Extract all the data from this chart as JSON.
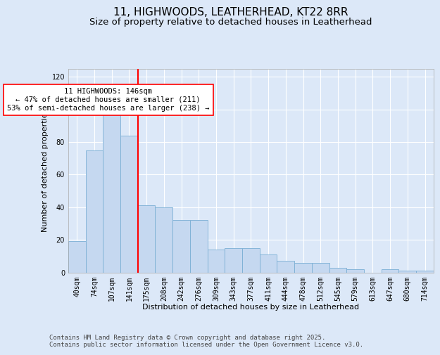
{
  "title_line1": "11, HIGHWOODS, LEATHERHEAD, KT22 8RR",
  "title_line2": "Size of property relative to detached houses in Leatherhead",
  "xlabel": "Distribution of detached houses by size in Leatherhead",
  "ylabel": "Number of detached properties",
  "categories": [
    "40sqm",
    "74sqm",
    "107sqm",
    "141sqm",
    "175sqm",
    "208sqm",
    "242sqm",
    "276sqm",
    "309sqm",
    "343sqm",
    "377sqm",
    "411sqm",
    "444sqm",
    "478sqm",
    "512sqm",
    "545sqm",
    "579sqm",
    "613sqm",
    "647sqm",
    "680sqm",
    "714sqm"
  ],
  "values": [
    19,
    75,
    101,
    84,
    41,
    40,
    32,
    32,
    14,
    15,
    15,
    11,
    7,
    6,
    6,
    3,
    2,
    0,
    2,
    1,
    1
  ],
  "bar_color": "#c5d8f0",
  "bar_edge_color": "#7aaed4",
  "vline_index": 3,
  "vline_color": "red",
  "annotation_title": "11 HIGHWOODS: 146sqm",
  "annotation_line2": "← 47% of detached houses are smaller (211)",
  "annotation_line3": "53% of semi-detached houses are larger (238) →",
  "annotation_box_color": "white",
  "annotation_box_edge": "red",
  "ylim": [
    0,
    125
  ],
  "yticks": [
    0,
    20,
    40,
    60,
    80,
    100,
    120
  ],
  "background_color": "#dce8f8",
  "plot_bg_color": "#dce8f8",
  "footer_line1": "Contains HM Land Registry data © Crown copyright and database right 2025.",
  "footer_line2": "Contains public sector information licensed under the Open Government Licence v3.0.",
  "title_fontsize": 11,
  "subtitle_fontsize": 9.5,
  "axis_label_fontsize": 8,
  "tick_fontsize": 7,
  "annotation_fontsize": 7.5,
  "footer_fontsize": 6.5
}
